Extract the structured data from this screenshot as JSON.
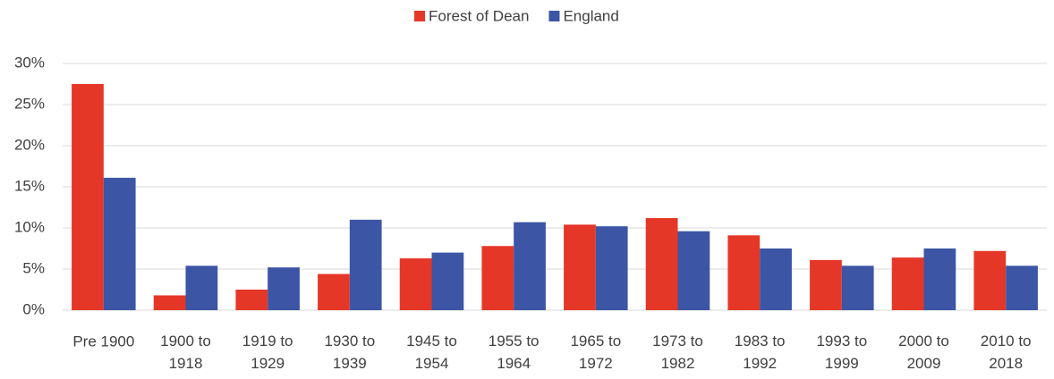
{
  "chart_data": {
    "type": "bar",
    "categories": [
      "Pre 1900",
      "1900 to 1918",
      "1919 to 1929",
      "1930 to 1939",
      "1945 to 1954",
      "1955 to 1964",
      "1965 to 1972",
      "1973 to 1982",
      "1983 to 1992",
      "1993 to 1999",
      "2000 to 2009",
      "2010 to 2018"
    ],
    "series": [
      {
        "name": "Forest of Dean",
        "color": "#e53727",
        "values": [
          27.5,
          1.8,
          2.5,
          4.4,
          6.3,
          7.8,
          10.4,
          11.2,
          9.1,
          6.1,
          6.4,
          7.2
        ]
      },
      {
        "name": "England",
        "color": "#3c55a5",
        "values": [
          16.1,
          5.4,
          5.2,
          11.0,
          7.0,
          10.7,
          10.2,
          9.6,
          7.5,
          5.4,
          7.5,
          5.4
        ]
      }
    ],
    "ylim": [
      0,
      30
    ],
    "yticks": [
      {
        "value": 0,
        "label": "0%"
      },
      {
        "value": 5,
        "label": "5%"
      },
      {
        "value": 10,
        "label": "10%"
      },
      {
        "value": 15,
        "label": "15%"
      },
      {
        "value": 20,
        "label": "20%"
      },
      {
        "value": 25,
        "label": "25%"
      },
      {
        "value": 30,
        "label": "30%"
      }
    ],
    "grid": true,
    "legend": "top"
  }
}
